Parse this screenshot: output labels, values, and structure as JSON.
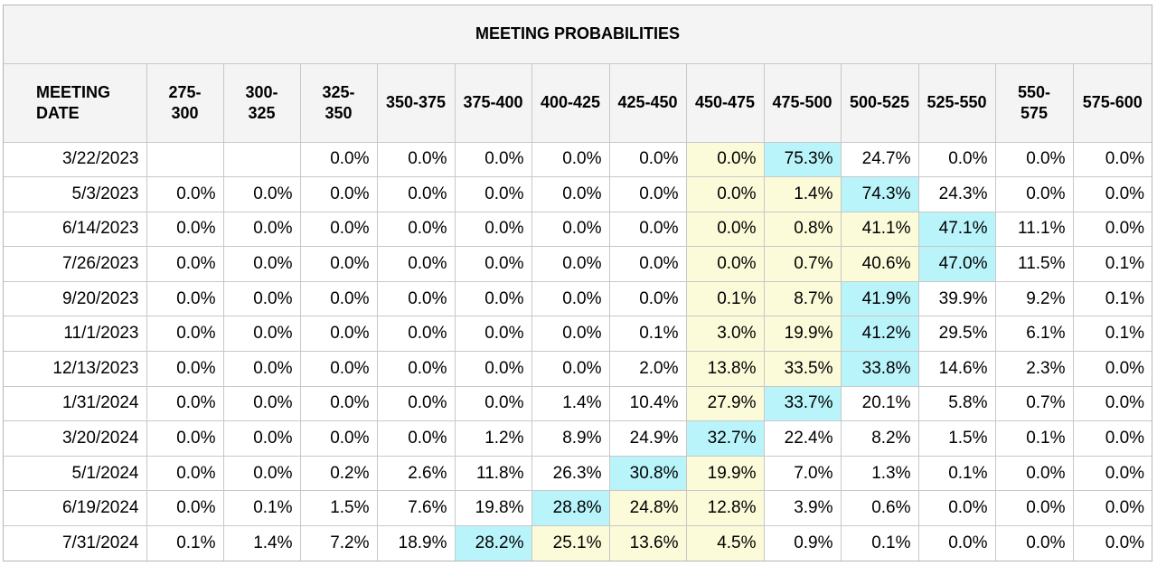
{
  "title": "MEETING PROBABILITIES",
  "date_header": "MEETING\nDATE",
  "columns": [
    "275-\n300",
    "300-\n325",
    "325-\n350",
    "350-375",
    "375-400",
    "400-425",
    "425-450",
    "450-475",
    "475-500",
    "500-525",
    "525-550",
    "550-\n575",
    "575-600"
  ],
  "colors": {
    "highlight_yellow": "#fbfbd9",
    "highlight_blue": "#b9f4fb",
    "header_bg": "#f4f4f4",
    "border": "#c8c8c8"
  },
  "rows": [
    {
      "date": "3/22/2023",
      "values": [
        "",
        "",
        "0.0%",
        "0.0%",
        "0.0%",
        "0.0%",
        "0.0%",
        "0.0%",
        "75.3%",
        "24.7%",
        "0.0%",
        "0.0%",
        "0.0%"
      ],
      "highlights": [
        "",
        "",
        "",
        "",
        "",
        "",
        "",
        "y",
        "b",
        "",
        "",
        "",
        ""
      ]
    },
    {
      "date": "5/3/2023",
      "values": [
        "0.0%",
        "0.0%",
        "0.0%",
        "0.0%",
        "0.0%",
        "0.0%",
        "0.0%",
        "0.0%",
        "1.4%",
        "74.3%",
        "24.3%",
        "0.0%",
        "0.0%"
      ],
      "highlights": [
        "",
        "",
        "",
        "",
        "",
        "",
        "",
        "y",
        "y",
        "b",
        "",
        "",
        ""
      ]
    },
    {
      "date": "6/14/2023",
      "values": [
        "0.0%",
        "0.0%",
        "0.0%",
        "0.0%",
        "0.0%",
        "0.0%",
        "0.0%",
        "0.0%",
        "0.8%",
        "41.1%",
        "47.1%",
        "11.1%",
        "0.0%"
      ],
      "highlights": [
        "",
        "",
        "",
        "",
        "",
        "",
        "",
        "y",
        "y",
        "y",
        "b",
        "",
        ""
      ]
    },
    {
      "date": "7/26/2023",
      "values": [
        "0.0%",
        "0.0%",
        "0.0%",
        "0.0%",
        "0.0%",
        "0.0%",
        "0.0%",
        "0.0%",
        "0.7%",
        "40.6%",
        "47.0%",
        "11.5%",
        "0.1%"
      ],
      "highlights": [
        "",
        "",
        "",
        "",
        "",
        "",
        "",
        "y",
        "y",
        "y",
        "b",
        "",
        ""
      ]
    },
    {
      "date": "9/20/2023",
      "values": [
        "0.0%",
        "0.0%",
        "0.0%",
        "0.0%",
        "0.0%",
        "0.0%",
        "0.0%",
        "0.1%",
        "8.7%",
        "41.9%",
        "39.9%",
        "9.2%",
        "0.1%"
      ],
      "highlights": [
        "",
        "",
        "",
        "",
        "",
        "",
        "",
        "y",
        "y",
        "b",
        "",
        "",
        ""
      ]
    },
    {
      "date": "11/1/2023",
      "values": [
        "0.0%",
        "0.0%",
        "0.0%",
        "0.0%",
        "0.0%",
        "0.0%",
        "0.1%",
        "3.0%",
        "19.9%",
        "41.2%",
        "29.5%",
        "6.1%",
        "0.1%"
      ],
      "highlights": [
        "",
        "",
        "",
        "",
        "",
        "",
        "",
        "y",
        "y",
        "b",
        "",
        "",
        ""
      ]
    },
    {
      "date": "12/13/2023",
      "values": [
        "0.0%",
        "0.0%",
        "0.0%",
        "0.0%",
        "0.0%",
        "0.0%",
        "2.0%",
        "13.8%",
        "33.5%",
        "33.8%",
        "14.6%",
        "2.3%",
        "0.0%"
      ],
      "highlights": [
        "",
        "",
        "",
        "",
        "",
        "",
        "",
        "y",
        "y",
        "b",
        "",
        "",
        ""
      ]
    },
    {
      "date": "1/31/2024",
      "values": [
        "0.0%",
        "0.0%",
        "0.0%",
        "0.0%",
        "0.0%",
        "1.4%",
        "10.4%",
        "27.9%",
        "33.7%",
        "20.1%",
        "5.8%",
        "0.7%",
        "0.0%"
      ],
      "highlights": [
        "",
        "",
        "",
        "",
        "",
        "",
        "",
        "y",
        "b",
        "",
        "",
        "",
        ""
      ]
    },
    {
      "date": "3/20/2024",
      "values": [
        "0.0%",
        "0.0%",
        "0.0%",
        "0.0%",
        "1.2%",
        "8.9%",
        "24.9%",
        "32.7%",
        "22.4%",
        "8.2%",
        "1.5%",
        "0.1%",
        "0.0%"
      ],
      "highlights": [
        "",
        "",
        "",
        "",
        "",
        "",
        "",
        "b",
        "",
        "",
        "",
        "",
        ""
      ]
    },
    {
      "date": "5/1/2024",
      "values": [
        "0.0%",
        "0.0%",
        "0.2%",
        "2.6%",
        "11.8%",
        "26.3%",
        "30.8%",
        "19.9%",
        "7.0%",
        "1.3%",
        "0.1%",
        "0.0%",
        "0.0%"
      ],
      "highlights": [
        "",
        "",
        "",
        "",
        "",
        "",
        "b",
        "y",
        "",
        "",
        "",
        "",
        ""
      ]
    },
    {
      "date": "6/19/2024",
      "values": [
        "0.0%",
        "0.1%",
        "1.5%",
        "7.6%",
        "19.8%",
        "28.8%",
        "24.8%",
        "12.8%",
        "3.9%",
        "0.6%",
        "0.0%",
        "0.0%",
        "0.0%"
      ],
      "highlights": [
        "",
        "",
        "",
        "",
        "",
        "b",
        "y",
        "y",
        "",
        "",
        "",
        "",
        ""
      ]
    },
    {
      "date": "7/31/2024",
      "values": [
        "0.1%",
        "1.4%",
        "7.2%",
        "18.9%",
        "28.2%",
        "25.1%",
        "13.6%",
        "4.5%",
        "0.9%",
        "0.1%",
        "0.0%",
        "0.0%",
        "0.0%"
      ],
      "highlights": [
        "",
        "",
        "",
        "",
        "b",
        "y",
        "y",
        "y",
        "",
        "",
        "",
        "",
        ""
      ]
    }
  ]
}
